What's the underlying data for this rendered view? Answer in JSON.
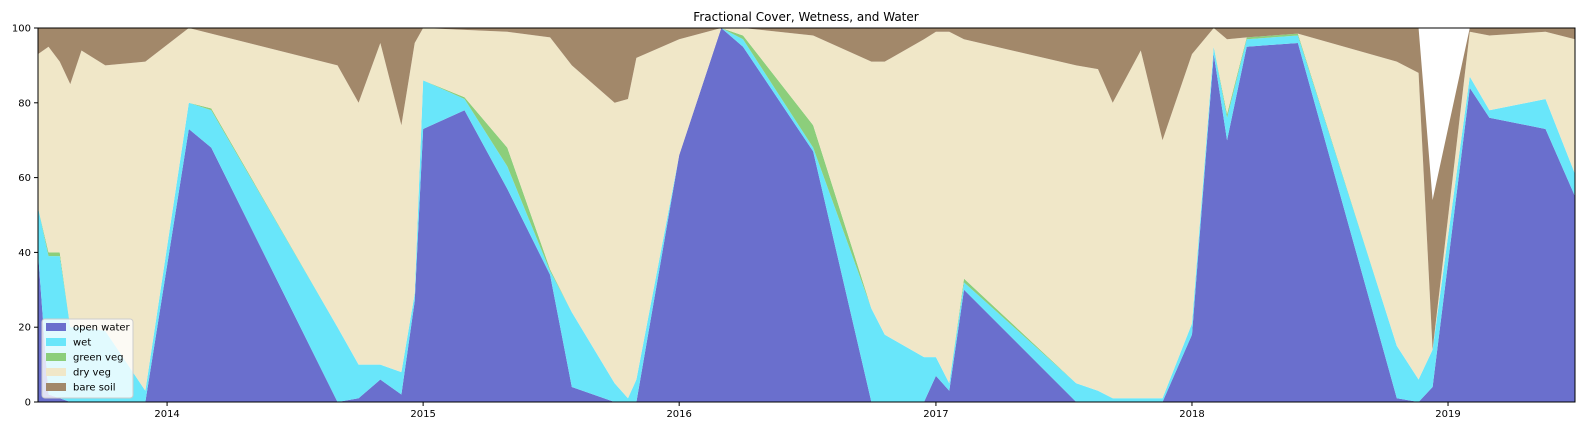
{
  "chart_data": {
    "type": "area",
    "title": "Fractional Cover, Wetness, and Water",
    "xlabel": "",
    "ylabel": "",
    "xlim": [
      "2013-07-01",
      "2019-07-01"
    ],
    "ylim": [
      0,
      100
    ],
    "grid": false,
    "stacked": true,
    "legend_position": "lower-left",
    "x_ticks": [
      "2014",
      "2015",
      "2016",
      "2017",
      "2018",
      "2019"
    ],
    "y_ticks": [
      0,
      20,
      40,
      60,
      80,
      100
    ],
    "dates": [
      "2013-07-01",
      "2013-07-16",
      "2013-08-01",
      "2013-08-16",
      "2013-09-01",
      "2013-10-05",
      "2013-12-01",
      "2014-02-01",
      "2014-03-05",
      "2014-09-01",
      "2014-10-01",
      "2014-11-01",
      "2014-12-01",
      "2014-12-20",
      "2015-01-01",
      "2015-03-01",
      "2015-05-01",
      "2015-07-01",
      "2015-08-01",
      "2015-10-01",
      "2015-10-20",
      "2015-11-01",
      "2016-01-01",
      "2016-03-01",
      "2016-04-01",
      "2016-07-10",
      "2016-10-01",
      "2016-10-20",
      "2016-12-15",
      "2017-01-01",
      "2017-01-20",
      "2017-02-10",
      "2017-07-20",
      "2017-08-20",
      "2017-09-10",
      "2017-10-20",
      "2017-11-20",
      "2018-01-01",
      "2018-02-01",
      "2018-02-20",
      "2018-03-20",
      "2018-06-01",
      "2018-10-20",
      "2018-11-20",
      "2018-12-10",
      "2019-02-01",
      "2019-03-01",
      "2019-05-20",
      "2019-07-01"
    ],
    "series": [
      {
        "name": "open water",
        "color": "#6a6fcd",
        "values": [
          40,
          2,
          1,
          0,
          0,
          0,
          0,
          73,
          68,
          0,
          1,
          6,
          2,
          27,
          73,
          78,
          57,
          34,
          4,
          0,
          0,
          0,
          66,
          100,
          95,
          67,
          0,
          0,
          0,
          7,
          3,
          30,
          0,
          0,
          0,
          0,
          0,
          18,
          93,
          70,
          95,
          96,
          1,
          0,
          4,
          84,
          76,
          73,
          55
        ]
      },
      {
        "name": "wet",
        "color": "#69e6fa",
        "values": [
          12,
          37,
          38,
          20,
          20,
          19,
          3,
          7,
          10,
          20,
          9,
          4,
          6,
          2,
          13,
          3,
          6,
          1,
          20,
          5,
          1,
          6,
          0,
          0,
          2,
          1,
          25,
          18,
          12,
          5,
          2,
          2,
          5,
          3,
          1,
          1,
          1,
          3,
          2,
          6,
          2,
          2,
          14,
          6,
          10,
          3,
          2,
          8,
          6
        ]
      },
      {
        "name": "green veg",
        "color": "#8cce7b",
        "values": [
          0,
          1,
          1,
          0,
          0,
          0,
          0,
          0,
          0.5,
          0,
          0,
          0,
          0,
          0,
          0,
          0.5,
          5,
          0.5,
          0,
          0,
          0,
          0,
          0,
          0,
          1,
          6,
          0,
          0,
          0,
          0,
          0,
          1,
          0,
          0,
          0,
          0,
          0,
          0,
          0,
          1,
          0.5,
          0.5,
          0,
          0,
          0,
          0,
          0,
          0,
          0
        ]
      },
      {
        "name": "dry veg",
        "color": "#f0e7c8",
        "values": [
          41,
          55,
          51,
          65,
          74,
          71,
          88,
          20,
          20,
          70,
          70,
          86,
          66,
          67,
          14,
          18,
          31,
          62,
          66,
          75,
          80,
          86,
          31,
          0,
          2,
          24,
          66,
          73,
          85,
          87,
          94,
          64,
          85,
          86,
          79,
          93,
          69,
          72,
          5,
          20,
          0,
          0,
          76,
          82,
          0,
          12,
          20,
          18,
          36
        ]
      },
      {
        "name": "bare soil",
        "color": "#a2886a",
        "values": [
          7,
          5,
          9,
          15,
          6,
          10,
          9,
          0,
          1.5,
          10,
          20,
          4,
          26,
          4,
          0,
          0.5,
          1,
          2.5,
          10,
          20,
          19,
          8,
          3,
          0,
          0,
          2,
          9,
          9,
          3,
          1,
          1,
          3,
          10,
          11,
          20,
          6,
          30,
          7,
          0,
          3,
          2.5,
          1.5,
          9,
          12,
          40,
          1,
          2,
          1,
          3
        ]
      }
    ]
  }
}
